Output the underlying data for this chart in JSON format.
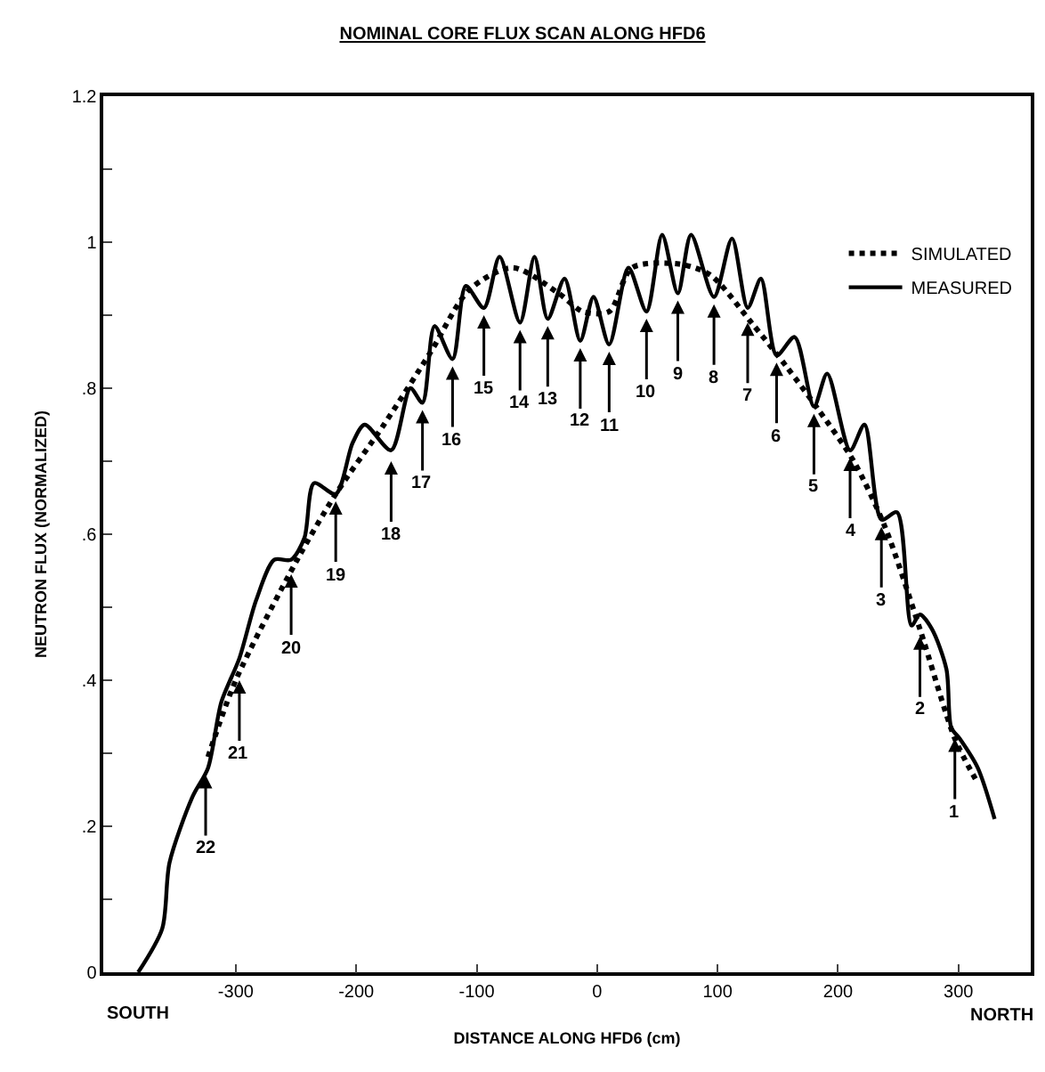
{
  "chart_data": {
    "type": "line",
    "title": "NOMINAL CORE FLUX SCAN ALONG HFD6",
    "xlabel": "DISTANCE ALONG HFD6 (cm)",
    "ylabel": "NEUTRON FLUX (NORMALIZED)",
    "xlim": [
      -410,
      360
    ],
    "ylim": [
      0,
      1.2
    ],
    "xticks": [
      -300,
      -200,
      -100,
      0,
      100,
      200,
      300
    ],
    "yticks": [
      0,
      {
        "value": 0.1,
        "label": null
      },
      {
        "value": 0.2,
        "label": ".2"
      },
      {
        "value": 0.3,
        "label": null
      },
      {
        "value": 0.4,
        "label": ".4"
      },
      {
        "value": 0.5,
        "label": null
      },
      {
        "value": 0.6,
        "label": ".6"
      },
      {
        "value": 0.7,
        "label": null
      },
      {
        "value": 0.8,
        "label": ".8"
      },
      {
        "value": 0.9,
        "label": null
      },
      1,
      {
        "value": 1.1,
        "label": null
      },
      1.2
    ],
    "legend": "top right",
    "marker": "none",
    "series": [
      {
        "name": "SIMULATED",
        "color": "#000000",
        "line_style": "dotted",
        "x": [
          -323,
          -300,
          -249,
          -217,
          -177,
          -138,
          -106,
          -70,
          -32,
          -12,
          10,
          29,
          68,
          94,
          128,
          157,
          184,
          213,
          239,
          268,
          297,
          314
        ],
        "values": [
          0.295,
          0.4,
          0.565,
          0.655,
          0.75,
          0.85,
          0.935,
          0.965,
          0.93,
          0.905,
          0.905,
          0.965,
          0.97,
          0.955,
          0.89,
          0.83,
          0.77,
          0.7,
          0.61,
          0.47,
          0.32,
          0.265
        ]
      },
      {
        "name": "MEASURED",
        "color": "#000000",
        "line_style": "solid",
        "x": [
          -381,
          -361,
          -355,
          -336,
          -323,
          -312,
          -297,
          -283,
          -268,
          -254,
          -243,
          -235,
          -217,
          -203,
          -193,
          -171,
          -155,
          -145,
          -135,
          -120,
          -109,
          -94,
          -81,
          -64,
          -52,
          -41,
          -27,
          -14,
          -3,
          10,
          26,
          41,
          54,
          67,
          78,
          97,
          112,
          125,
          136,
          149,
          164,
          180,
          191,
          210,
          222,
          236,
          249,
          261,
          268,
          278,
          290,
          294,
          301,
          316,
          330
        ],
        "values": [
          0,
          0.06,
          0.15,
          0.24,
          0.28,
          0.37,
          0.43,
          0.51,
          0.565,
          0.565,
          0.595,
          0.67,
          0.655,
          0.725,
          0.75,
          0.715,
          0.8,
          0.78,
          0.885,
          0.84,
          0.94,
          0.91,
          0.98,
          0.89,
          0.98,
          0.895,
          0.95,
          0.865,
          0.925,
          0.86,
          0.965,
          0.905,
          1.01,
          0.93,
          1.01,
          0.925,
          1.005,
          0.91,
          0.95,
          0.845,
          0.87,
          0.775,
          0.82,
          0.715,
          0.75,
          0.62,
          0.63,
          0.475,
          0.49,
          0.47,
          0.415,
          0.335,
          0.32,
          0.28,
          0.21
        ]
      }
    ],
    "annotations": [
      "SOUTH",
      "NORTH",
      {
        "text": "1",
        "x": 297,
        "y": 0.32
      },
      {
        "text": "2",
        "x": 268,
        "y": 0.46
      },
      {
        "text": "3",
        "x": 236,
        "y": 0.61
      },
      {
        "text": "4",
        "x": 210,
        "y": 0.705
      },
      {
        "text": "5",
        "x": 180,
        "y": 0.765
      },
      {
        "text": "6",
        "x": 149,
        "y": 0.835
      },
      {
        "text": "7",
        "x": 125,
        "y": 0.89
      },
      {
        "text": "8",
        "x": 97,
        "y": 0.915
      },
      {
        "text": "9",
        "x": 67,
        "y": 0.92
      },
      {
        "text": "10",
        "x": 41,
        "y": 0.895
      },
      {
        "text": "11",
        "x": 10,
        "y": 0.85
      },
      {
        "text": "12",
        "x": -14,
        "y": 0.855
      },
      {
        "text": "13",
        "x": -41,
        "y": 0.885
      },
      {
        "text": "14",
        "x": -64,
        "y": 0.88
      },
      {
        "text": "15",
        "x": -94,
        "y": 0.9
      },
      {
        "text": "16",
        "x": -120,
        "y": 0.83
      },
      {
        "text": "17",
        "x": -145,
        "y": 0.77
      },
      {
        "text": "18",
        "x": -171,
        "y": 0.7
      },
      {
        "text": "19",
        "x": -217,
        "y": 0.645
      },
      {
        "text": "20",
        "x": -254,
        "y": 0.545
      },
      {
        "text": "21",
        "x": -297,
        "y": 0.4
      },
      {
        "text": "22",
        "x": -325,
        "y": 0.27
      }
    ]
  }
}
